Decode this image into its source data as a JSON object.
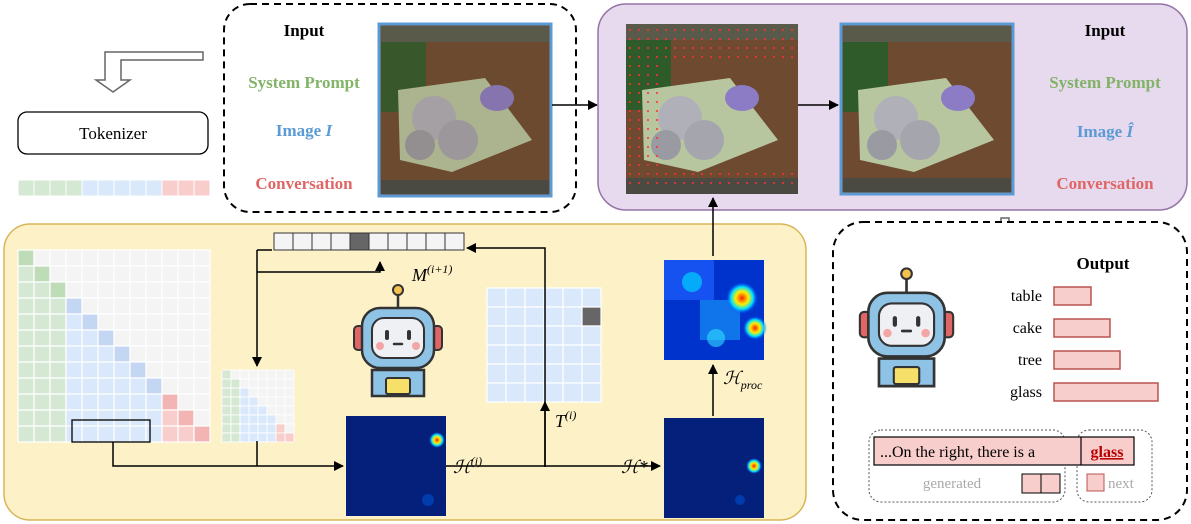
{
  "tokenizer": {
    "label": "Tokenizer"
  },
  "input_left": {
    "title": "Input",
    "system_prompt": "System Prompt",
    "image_text": "Image",
    "image_symbol": "I",
    "conversation": "Conversation"
  },
  "input_right": {
    "title": "Input",
    "system_prompt": "System Prompt",
    "image_text": "Image",
    "image_symbol": "Î",
    "conversation": "Conversation"
  },
  "math": {
    "mask": "M",
    "mask_sup": "(i+1)",
    "transform": "T",
    "transform_sup": "(i)",
    "heat": "ℋ",
    "heat_sup": "(i)",
    "heat_star": "ℋ*",
    "heat_proc": "ℋ",
    "heat_proc_sub": "proc"
  },
  "output": {
    "title": "Output",
    "bars": [
      {
        "label": "table",
        "value": 0.36
      },
      {
        "label": "cake",
        "value": 0.54
      },
      {
        "label": "tree",
        "value": 0.63
      },
      {
        "label": "glass",
        "value": 1.0
      }
    ],
    "sentence": "...On the right, there is a",
    "next_word": "glass",
    "generated_label": "generated",
    "next_label": "next"
  },
  "colors": {
    "green": "#82b366",
    "blue": "#5b9bd5",
    "red": "#e06666",
    "yellow_bg": "#fdf1c8",
    "purple_bg": "#e7d9ee",
    "bar_fill": "#f8cecc",
    "bar_stroke": "#b85450"
  }
}
